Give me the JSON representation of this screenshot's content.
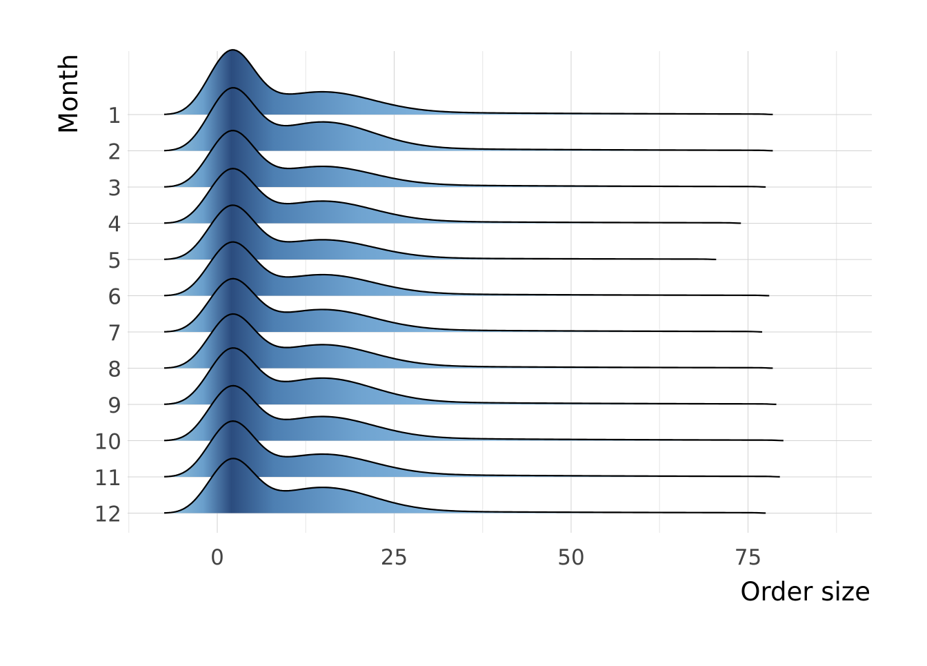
{
  "chart_data": {
    "type": "ridgeline",
    "xlabel": "Order size",
    "ylabel": "Month",
    "xlim": [
      -15,
      92
    ],
    "x_ticks": [
      0,
      25,
      50,
      75
    ],
    "x_tick_labels": [
      "0",
      "25",
      "50",
      "75"
    ],
    "categories": [
      "1",
      "2",
      "3",
      "4",
      "5",
      "6",
      "7",
      "8",
      "9",
      "10",
      "11",
      "12"
    ],
    "gradient_colors": [
      "#9ecae1",
      "#6a9fcc",
      "#2b4c7e",
      "#4d7fb2",
      "#6fa3d0",
      "#8ec0e6"
    ],
    "gradient_stops": [
      -8,
      -2,
      2,
      8,
      20,
      40
    ],
    "grid": true,
    "series": [
      {
        "name": "1",
        "x_min": -7.5,
        "x_max": 78.5,
        "peak_x": 2,
        "peak_height": 1.7,
        "shoulder": 0.55,
        "tail": 0.1
      },
      {
        "name": "2",
        "x_min": -7.5,
        "x_max": 78.5,
        "peak_x": 2,
        "peak_height": 1.62,
        "shoulder": 0.72,
        "tail": 0.1
      },
      {
        "name": "3",
        "x_min": -7.5,
        "x_max": 77.5,
        "peak_x": 2,
        "peak_height": 1.48,
        "shoulder": 0.5,
        "tail": 0.09
      },
      {
        "name": "4",
        "x_min": -7.5,
        "x_max": 74.0,
        "peak_x": 2,
        "peak_height": 1.42,
        "shoulder": 0.55,
        "tail": 0.08
      },
      {
        "name": "5",
        "x_min": -7.5,
        "x_max": 70.5,
        "peak_x": 2,
        "peak_height": 1.42,
        "shoulder": 0.5,
        "tail": 0.06
      },
      {
        "name": "6",
        "x_min": -7.5,
        "x_max": 78.0,
        "peak_x": 2,
        "peak_height": 1.4,
        "shoulder": 0.52,
        "tail": 0.08
      },
      {
        "name": "7",
        "x_min": -7.5,
        "x_max": 77.0,
        "peak_x": 2,
        "peak_height": 1.38,
        "shoulder": 0.55,
        "tail": 0.09
      },
      {
        "name": "8",
        "x_min": -7.5,
        "x_max": 78.5,
        "peak_x": 2,
        "peak_height": 1.4,
        "shoulder": 0.58,
        "tail": 0.09
      },
      {
        "name": "9",
        "x_min": -7.5,
        "x_max": 79.0,
        "peak_x": 2,
        "peak_height": 1.45,
        "shoulder": 0.65,
        "tail": 0.1
      },
      {
        "name": "10",
        "x_min": -7.5,
        "x_max": 80.0,
        "peak_x": 2,
        "peak_height": 1.42,
        "shoulder": 0.58,
        "tail": 0.11
      },
      {
        "name": "11",
        "x_min": -7.5,
        "x_max": 79.5,
        "peak_x": 2,
        "peak_height": 1.45,
        "shoulder": 0.55,
        "tail": 0.1
      },
      {
        "name": "12",
        "x_min": -7.5,
        "x_max": 77.5,
        "peak_x": 2,
        "peak_height": 1.4,
        "shoulder": 0.65,
        "tail": 0.08
      }
    ]
  }
}
